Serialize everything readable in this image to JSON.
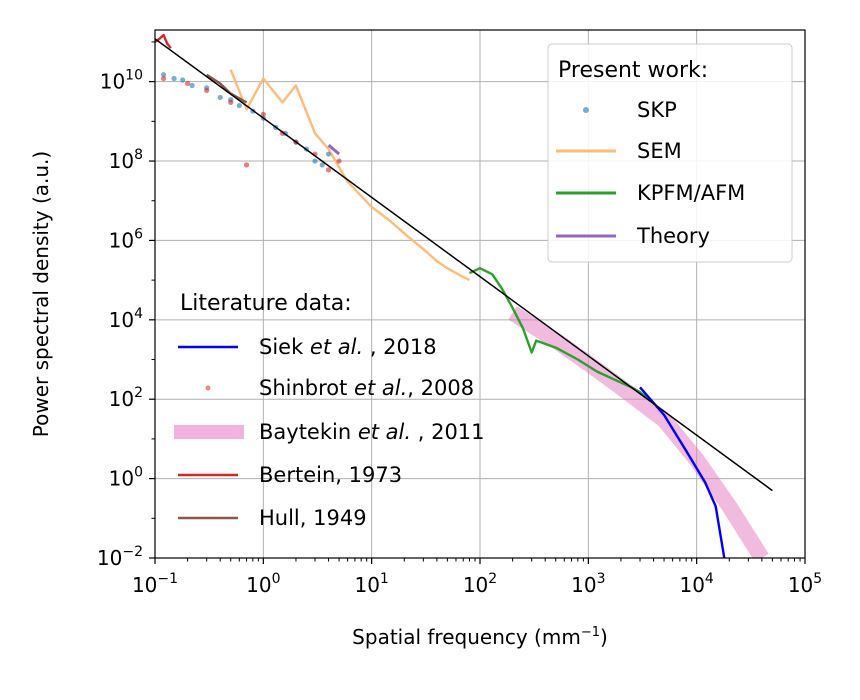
{
  "chart_data": {
    "type": "line",
    "title": "",
    "xlabel": "Spatial frequency (mm",
    "xlabel_sup": "−1",
    "xlabel_end": ")",
    "ylabel": "Power spectral density (a.u.)",
    "xscale": "log",
    "yscale": "log",
    "xlim": [
      0.1,
      100000
    ],
    "ylim": [
      0.01,
      200000000000
    ],
    "grid": true,
    "x_ticks": [
      {
        "base": "10",
        "exp": "−1",
        "value": 0.1
      },
      {
        "base": "10",
        "exp": "0",
        "value": 1
      },
      {
        "base": "10",
        "exp": "1",
        "value": 10
      },
      {
        "base": "10",
        "exp": "2",
        "value": 100
      },
      {
        "base": "10",
        "exp": "3",
        "value": 1000
      },
      {
        "base": "10",
        "exp": "4",
        "value": 10000
      },
      {
        "base": "10",
        "exp": "5",
        "value": 100000
      }
    ],
    "y_ticks": [
      {
        "base": "10",
        "exp": "−2",
        "value": 0.01
      },
      {
        "base": "10",
        "exp": "0",
        "value": 1
      },
      {
        "base": "10",
        "exp": "2",
        "value": 100
      },
      {
        "base": "10",
        "exp": "4",
        "value": 10000
      },
      {
        "base": "10",
        "exp": "6",
        "value": 1000000
      },
      {
        "base": "10",
        "exp": "8",
        "value": 100000000
      },
      {
        "base": "10",
        "exp": "10",
        "value": 10000000000
      }
    ],
    "legend_present": {
      "title": "Present work:",
      "placement": "upper right",
      "entries": [
        "SKP",
        "SEM",
        "KPFM/AFM",
        "Theory"
      ]
    },
    "legend_literature": {
      "title": "Literature data:",
      "placement": "lower left",
      "entries": [
        {
          "pre": "Siek ",
          "ital": "et al.",
          "post": " , 2018"
        },
        {
          "pre": "Shinbrot ",
          "ital": "et al.",
          "post": ", 2008"
        },
        {
          "pre": "Baytekin ",
          "ital": "et al.",
          "post": " , 2011"
        },
        {
          "pre": "Bertein, 1973",
          "ital": "",
          "post": ""
        },
        {
          "pre": "Hull, 1949",
          "ital": "",
          "post": ""
        }
      ]
    },
    "colors": {
      "skp": "#1f77b4",
      "sem": "#ffbb78",
      "kpfm": "#2ca02c",
      "theory": "#9467bd",
      "siek": "#0000ff",
      "shinbrot": "#d62728",
      "baytekin": "#e377c2",
      "bertein": "#d62728",
      "hull": "#8c564b",
      "fit": "#000000"
    },
    "series": [
      {
        "name": "SKP",
        "kind": "scatter",
        "x": [
          0.12,
          0.15,
          0.18,
          0.22,
          0.3,
          0.4,
          0.5,
          0.6,
          0.8,
          1.0,
          1.3,
          1.6,
          2.0,
          2.5,
          3.0,
          3.5,
          4.0
        ],
        "y": [
          15000000000,
          12000000000,
          11000000000,
          8000000000,
          7000000000,
          4000000000,
          3500000000,
          2500000000,
          1800000000,
          1200000000,
          700000000,
          500000000,
          300000000,
          200000000,
          100000000,
          80000000,
          150000000
        ]
      },
      {
        "name": "SEM",
        "kind": "line",
        "x": [
          0.5,
          0.7,
          1,
          1.5,
          2,
          3,
          4,
          6,
          10,
          15,
          20,
          30,
          40,
          50,
          60,
          70,
          80
        ],
        "y": [
          20000000000,
          2000000000,
          12000000000,
          3000000000,
          8000000000,
          500000000,
          200000000,
          30000000,
          7000000,
          3000000,
          1500000,
          600000,
          300000,
          200000,
          150000,
          120000,
          100000
        ]
      },
      {
        "name": "KPFM/AFM",
        "kind": "line",
        "x": [
          80,
          100,
          130,
          160,
          200,
          250,
          300,
          330,
          500,
          800,
          1200,
          1800,
          2500,
          3000,
          3600
        ],
        "y": [
          150000,
          200000,
          140000,
          60000,
          20000,
          6000,
          1500,
          3000,
          2000,
          1000,
          500,
          300,
          200,
          150,
          100
        ]
      },
      {
        "name": "Theory",
        "kind": "line",
        "x": [
          4,
          5
        ],
        "y": [
          250000000,
          150000000
        ]
      },
      {
        "name": "Siek et al., 2018",
        "kind": "line",
        "x": [
          3000,
          5000,
          8000,
          12000,
          15000,
          18000
        ],
        "y": [
          200,
          40,
          5,
          0.8,
          0.2,
          0.01
        ]
      },
      {
        "name": "Shinbrot et al., 2008",
        "kind": "scatter",
        "x": [
          0.12,
          0.2,
          0.3,
          0.5,
          0.7,
          1.0,
          1.5,
          2.0,
          3.0,
          4.0,
          5.0
        ],
        "y": [
          12000000000,
          9000000000,
          6000000000,
          3000000000,
          80000000,
          1500000000,
          500000000,
          300000000,
          150000000,
          60000000,
          100000000
        ]
      },
      {
        "name": "Baytekin et al., 2011",
        "kind": "band",
        "x": [
          200,
          500,
          1000,
          2000,
          5000,
          10000,
          20000,
          40000
        ],
        "y": [
          15000,
          3000,
          800,
          200,
          30,
          3,
          0.2,
          0.01
        ]
      },
      {
        "name": "Bertein, 1973",
        "kind": "line",
        "x": [
          0.1,
          0.11,
          0.12,
          0.13,
          0.14
        ],
        "y": [
          100000000000,
          120000000000,
          150000000000,
          90000000000,
          70000000000
        ]
      },
      {
        "name": "Hull, 1949",
        "kind": "line",
        "x": [
          0.3,
          0.4,
          0.5,
          0.7
        ],
        "y": [
          15000000000,
          9000000000,
          5000000000,
          3000000000
        ]
      },
      {
        "name": "",
        "kind": "fit",
        "x": [
          0.1,
          50000
        ],
        "y": [
          120000000000,
          0.5
        ]
      }
    ]
  }
}
